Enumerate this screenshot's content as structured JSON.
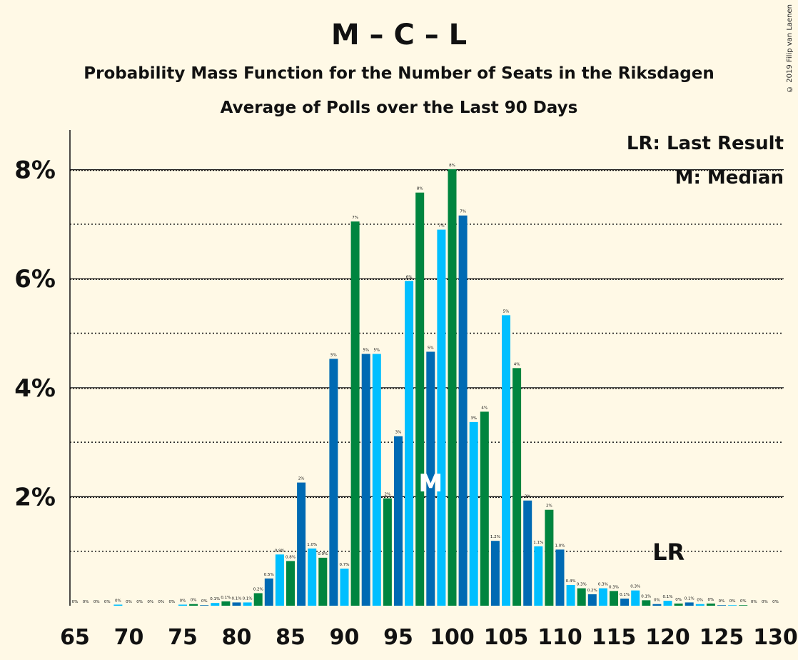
{
  "title": "M – C – L",
  "subtitle1": "Probability Mass Function for the Number of Seats in the Riksdagen",
  "subtitle2": "Average of Polls over the Last 90 Days",
  "copyright": "© 2019 Filip van Laenen",
  "legend": {
    "last_result": "LR: Last Result",
    "median": "M: Median"
  },
  "markers": {
    "median_label": "M",
    "median_seat": 98,
    "last_result_label": "LR",
    "last_result_seat": 121
  },
  "colors": {
    "background": "#FFF9E6",
    "dark_blue": "#006AB3",
    "light_blue": "#00BFFF",
    "green": "#00853F"
  },
  "chart_data": {
    "type": "bar",
    "xlabel": "",
    "ylabel": "",
    "xlim": [
      65,
      130
    ],
    "ylim": [
      0,
      8.7
    ],
    "x_ticks": [
      65,
      70,
      75,
      80,
      85,
      90,
      95,
      100,
      105,
      110,
      115,
      120,
      125,
      130
    ],
    "y_ticks": [
      {
        "value": 2,
        "label": "2%"
      },
      {
        "value": 4,
        "label": "4%"
      },
      {
        "value": 6,
        "label": "6%"
      },
      {
        "value": 8,
        "label": "8%"
      }
    ],
    "grid_solid": [
      2,
      4,
      6,
      8
    ],
    "grid_dotted": [
      1,
      3,
      5,
      7
    ],
    "color_cycle": [
      "dark_blue",
      "light_blue",
      "green"
    ],
    "x": [
      65,
      66,
      67,
      68,
      69,
      70,
      71,
      72,
      73,
      74,
      75,
      76,
      77,
      78,
      79,
      80,
      81,
      82,
      83,
      84,
      85,
      86,
      87,
      88,
      89,
      90,
      91,
      92,
      93,
      94,
      95,
      96,
      97,
      98,
      99,
      100,
      101,
      102,
      103,
      104,
      105,
      106,
      107,
      108,
      109,
      110,
      111,
      112,
      113,
      114,
      115,
      116,
      117,
      118,
      119,
      120,
      121,
      122,
      123,
      124,
      125,
      126,
      127,
      128,
      129,
      130
    ],
    "values": [
      0,
      0,
      0,
      0,
      0.02,
      0,
      0,
      0,
      0,
      0,
      0.02,
      0.03,
      0.01,
      0.05,
      0.08,
      0.06,
      0.06,
      0.23,
      0.5,
      0.94,
      0.82,
      2.26,
      1.05,
      0.88,
      4.53,
      0.68,
      7.05,
      4.62,
      4.62,
      1.97,
      3.11,
      5.96,
      7.58,
      4.66,
      6.9,
      8.01,
      7.16,
      3.37,
      3.56,
      1.19,
      5.33,
      4.36,
      1.93,
      1.09,
      1.76,
      1.03,
      0.38,
      0.32,
      0.21,
      0.32,
      0.27,
      0.13,
      0.28,
      0.1,
      0.03,
      0.09,
      0.04,
      0.06,
      0.03,
      0.04,
      0.01,
      0.01,
      0.01,
      0,
      0,
      0
    ],
    "labels": [
      "0%",
      "0%",
      "0%",
      "0%",
      "0%",
      "0%",
      "0%",
      "0%",
      "0%",
      "0%",
      "0%",
      "0%",
      "0%",
      "0.1%",
      "0.1%",
      "0.1%",
      "0.1%",
      "0.2%",
      "0.5%",
      "0.9%",
      "0.8%",
      "2%",
      "1.0%",
      "0.9%",
      "5%",
      "0.7%",
      "7%",
      "5%",
      "5%",
      "2%",
      "3%",
      "6%",
      "8%",
      "5%",
      "7%",
      "8%",
      "7%",
      "3%",
      "4%",
      "1.2%",
      "5%",
      "4%",
      "2%",
      "1.1%",
      "2%",
      "1.0%",
      "0.4%",
      "0.3%",
      "0.2%",
      "0.3%",
      "0.3%",
      "0.1%",
      "0.3%",
      "0.1%",
      "0%",
      "0.1%",
      "0%",
      "0.1%",
      "0%",
      "0%",
      "0%",
      "0%",
      "0%",
      "0%",
      "0%",
      "0%"
    ]
  }
}
